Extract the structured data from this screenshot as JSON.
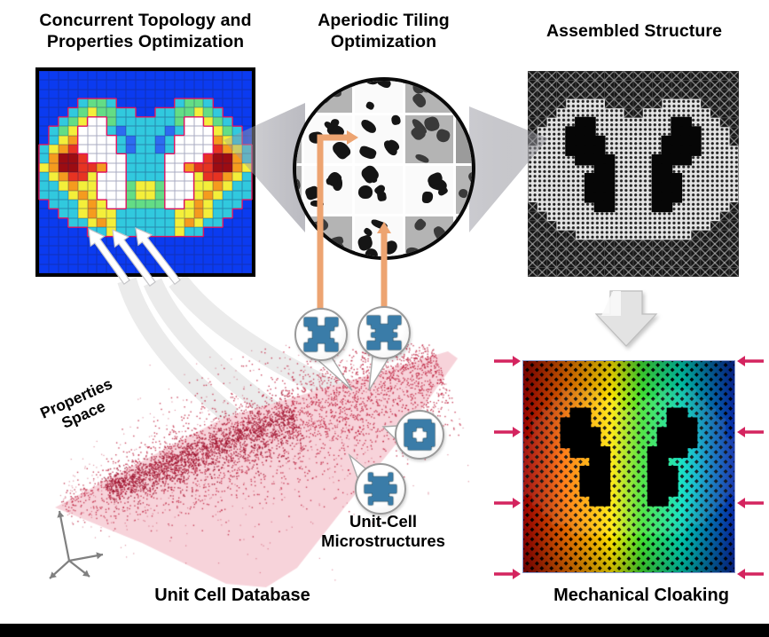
{
  "titles": {
    "top_left": [
      "Concurrent Topology and",
      "Properties Optimization"
    ],
    "top_center": [
      "Aperiodic Tiling",
      "Optimization"
    ],
    "top_right": "Assembled Structure",
    "bottom_left_caption": "Unit Cell Database",
    "bottom_right_caption": "Mechanical Cloaking"
  },
  "labels": {
    "properties_space": [
      "Properties",
      "Space"
    ],
    "microstructures": [
      "Unit-Cell",
      "Microstructures"
    ]
  },
  "colors": {
    "heatmap_bg": "#0b3bf0",
    "contour": "#e0115f",
    "scatter_point": "#bd1d3b",
    "scatter_core": "#9e1430",
    "scatter_envelope": "#f7d3da",
    "orange_arrow": "#eda471",
    "pink_arrow": "#d4245f",
    "icon_blue": "#3a7ca8",
    "band_gray": "#ebebeb",
    "lattice_dark_bg": "#171717",
    "lattice_line": "#8a8a8a",
    "halo_light": "#e4e4e4"
  },
  "heatmap": {
    "palette": {
      "B": "#0b3bf0",
      "b": "#2d6cf0",
      "c": "#31c9de",
      "g": "#63dd85",
      "y": "#f4ef3a",
      "o": "#f59b1e",
      "r": "#e73322",
      "d": "#9c0c12",
      "W": "#ffffff"
    },
    "rows_left_half": [
      "BBBBBBBBBBB",
      "BBBBBBBBBBB",
      "BBBBBBBBBBB",
      "BBBBcggcBBB",
      "BBBcgyggccB",
      "BBcgyWWgccc",
      "BcgyWWWcbcc",
      "BcyoWWWWcbc",
      "cyorWWWWcbc",
      "coddrWWWWcc",
      "yoddrroWWcc",
      "cyorryWWWcc",
      "ccyoyyWWWgy",
      "cccyoyWWWgy",
      "BcccyoyWWgg",
      "BBccyoyyccc",
      "BBBccyoyccc",
      "BBBBBccyccc",
      "BBBBBBBBBBB",
      "BBBBBBBBBBB",
      "BBBBBBBBBBB",
      "BBBBBBBBBBB"
    ]
  },
  "tiling": {
    "shades": [
      "GgwgG",
      "gwwgG",
      "gwwwg",
      "Ggwgg"
    ],
    "tile_gray": "#b4b4b4",
    "tile_gray_dark": "#9b9b9b",
    "tile_white": "#fafafa",
    "blob_dark": "#3a3a3a",
    "blob_black": "#151515"
  },
  "cloaking": {
    "spectrum": [
      "#cc0000",
      "#ff7300",
      "#ffe800",
      "#42e332",
      "#00dfc0",
      "#0a37e0"
    ],
    "side_arrow_count": 8
  },
  "icons": {
    "unitcell_x1": [
      "XXX..XXX",
      "XXX..XXX",
      ".XXXXXX.",
      "..XXXX..",
      "..XXXX..",
      ".XXXXXX.",
      "XXX..XXX",
      "XXX..XXX"
    ],
    "unitcell_x2": [
      "XXX..XXX",
      "XXX..XXX",
      ".XXXXXX.",
      "..XXXX..",
      ".XXXXXX.",
      "..XXXX..",
      "XXX..XXX",
      "XXX..XXX"
    ],
    "unitcell_plus_hole": [
      ".XXXXXX.",
      "XXXXXXXX",
      "XXX..XXX",
      "XX....XX",
      "XX....XX",
      "XXX..XXX",
      "XXXXXXXX",
      ".XXXXXX."
    ],
    "unitcell_gear": [
      ".X....X.",
      ".XXXXXX.",
      "..XXXX..",
      "XXXXXXXX",
      "XXXXXXXX",
      "..XXXX..",
      ".XXXXXX.",
      ".X....X."
    ]
  }
}
